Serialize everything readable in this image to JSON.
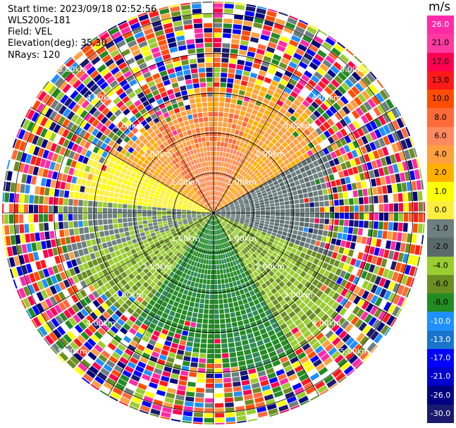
{
  "header": {
    "start_time": "Start time: 2023/09/18 02:52:56",
    "instrument": "WLS200s-181",
    "field": "Field: VEL",
    "elevation": "Elevation(deg): 35.30",
    "nrays": "NRays: 120"
  },
  "colorbar": {
    "unit": "m/s",
    "ticks": [
      "26.0",
      "21.0",
      "17.0",
      "13.0",
      "10.0",
      "8.0",
      "6.0",
      "4.0",
      "2.0",
      "1.0",
      "0.0",
      "-1.0",
      "-2.0",
      "-4.0",
      "-6.0",
      "-8.0",
      "-10.0",
      "-13.0",
      "-17.0",
      "-21.0",
      "-26.0",
      "-30.0"
    ],
    "colors": [
      "#ff2aa8",
      "#ff3aa0",
      "#ff0050",
      "#ff1a1a",
      "#ff4d00",
      "#ff6a3a",
      "#ff8a60",
      "#ffa040",
      "#ffb000",
      "#ffff00",
      "#ffee40",
      "#6e7f80",
      "#5a6a6b",
      "#9acd32",
      "#6b8e23",
      "#228b22",
      "#1e90ff",
      "#1874cd",
      "#0000ff",
      "#0000cd",
      "#000080",
      "#1a1a6e"
    ]
  },
  "map": {
    "range_labels": [
      "1.00km",
      "2.00km",
      "3.00km",
      "4.00km",
      "5.00km"
    ],
    "range_rings_km": [
      1,
      2,
      3,
      4,
      5
    ],
    "max_range_km": 5.3,
    "spoke_angles_deg": [
      0,
      30,
      60,
      90,
      120,
      150,
      180,
      210,
      240,
      270,
      300,
      330
    ]
  }
}
